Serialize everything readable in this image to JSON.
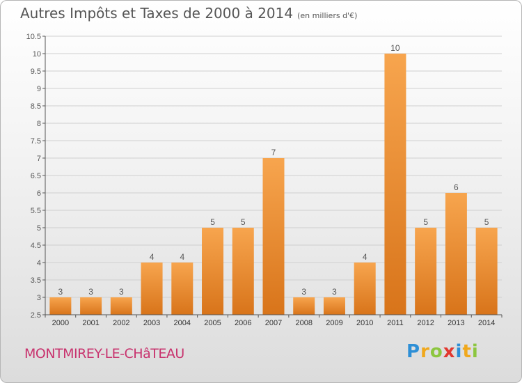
{
  "header": {
    "title": "Autres Impôts et Taxes de 2000 à 2014",
    "unit": "(en milliers d'€)"
  },
  "footer": {
    "place": "MONTMIREY-LE-CHâTEAU",
    "logo_letters": [
      {
        "char": "P",
        "color": "#2e8fd6"
      },
      {
        "char": "r",
        "color": "#f0a81c"
      },
      {
        "char": "o",
        "color": "#8cc63f"
      },
      {
        "char": "x",
        "color": "#e2382f"
      },
      {
        "char": "i",
        "color": "#2e8fd6"
      },
      {
        "char": "t",
        "color": "#f0a81c"
      },
      {
        "char": "i",
        "color": "#8cc63f"
      }
    ]
  },
  "colors": {
    "bar_light": "#f7a54e",
    "bar_dark": "#d8741a",
    "grid": "#cfcfcf",
    "axis": "#555555",
    "text": "#555555",
    "accent": "#c8336e"
  },
  "chart_data": {
    "type": "bar",
    "categories": [
      "2000",
      "2001",
      "2002",
      "2003",
      "2004",
      "2005",
      "2006",
      "2007",
      "2008",
      "2009",
      "2010",
      "2011",
      "2012",
      "2013",
      "2014"
    ],
    "values": [
      3,
      3,
      3,
      4,
      4,
      5,
      5,
      7,
      3,
      3,
      4,
      10,
      5,
      6,
      5
    ],
    "data_labels": [
      "3",
      "3",
      "3",
      "4",
      "4",
      "5",
      "5",
      "7",
      "3",
      "3",
      "4",
      "10",
      "5",
      "6",
      "5"
    ],
    "ylim": [
      2.5,
      10.5
    ],
    "yticks": [
      2.5,
      3,
      3.5,
      4,
      4.5,
      5,
      5.5,
      6,
      6.5,
      7,
      7.5,
      8,
      8.5,
      9,
      9.5,
      10,
      10.5
    ],
    "grid": true,
    "xlabel": "",
    "ylabel": ""
  }
}
